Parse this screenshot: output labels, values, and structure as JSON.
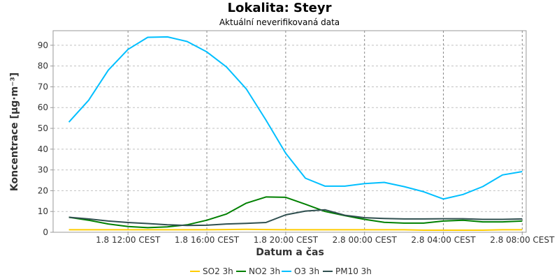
{
  "chart_data": {
    "type": "line",
    "title": "Lokalita: Steyr",
    "subtitle": "Aktuální neverifikovaná data",
    "xlabel": "Datum a čas",
    "ylabel": "Koncentrace [µg·m⁻³]",
    "ylim": [
      0,
      97
    ],
    "yticks": [
      0,
      10,
      20,
      30,
      40,
      50,
      60,
      70,
      80,
      90
    ],
    "xticks": [
      {
        "h": 12,
        "label": "1.8 12:00 CEST"
      },
      {
        "h": 16,
        "label": "1.8 16:00 CEST"
      },
      {
        "h": 20,
        "label": "1.8 20:00 CEST"
      },
      {
        "h": 24,
        "label": "2.8 00:00 CEST"
      },
      {
        "h": 28,
        "label": "2.8 04:00 CEST"
      },
      {
        "h": 32,
        "label": "2.8 08:00 CEST"
      }
    ],
    "x": [
      9,
      10,
      11,
      12,
      13,
      14,
      15,
      16,
      17,
      18,
      19,
      20,
      21,
      22,
      23,
      24,
      25,
      26,
      27,
      28,
      29,
      30,
      31,
      32
    ],
    "grid": true,
    "legend_position": "bottom",
    "series": [
      {
        "name": "SO2 3h",
        "color": "#ffcc00",
        "values": [
          1.2,
          1.2,
          1.2,
          1.2,
          1.2,
          1.2,
          1.2,
          1.2,
          1.3,
          1.4,
          1.3,
          1.2,
          1.2,
          1.2,
          1.2,
          1.2,
          1.2,
          1.2,
          1.0,
          1.0,
          1.0,
          1.0,
          1.2,
          1.2
        ]
      },
      {
        "name": "NO2 3h",
        "color": "#008000",
        "values": [
          7.2,
          5.8,
          4.0,
          2.8,
          2.2,
          2.6,
          3.6,
          5.8,
          8.8,
          14.0,
          17.0,
          16.8,
          13.5,
          10.0,
          8.0,
          6.2,
          4.8,
          4.4,
          4.4,
          5.4,
          5.8,
          5.0,
          5.0,
          5.4
        ]
      },
      {
        "name": "O3 3h",
        "color": "#00bfff",
        "values": [
          53,
          63.5,
          78,
          88,
          93.8,
          94,
          91.8,
          86.8,
          79.5,
          69,
          54,
          38,
          26,
          22.2,
          22.2,
          23.4,
          24,
          22,
          19.5,
          16,
          18.2,
          22,
          27.6,
          29.2
        ]
      },
      {
        "name": "PM10 3h",
        "color": "#2f4f4f",
        "values": [
          7.2,
          6.4,
          5.4,
          4.7,
          4.2,
          3.6,
          3.3,
          3.4,
          4.0,
          4.3,
          4.7,
          8.4,
          10.2,
          10.8,
          8.2,
          7.0,
          6.6,
          6.4,
          6.4,
          6.5,
          6.5,
          6.2,
          6.2,
          6.4
        ]
      }
    ]
  }
}
